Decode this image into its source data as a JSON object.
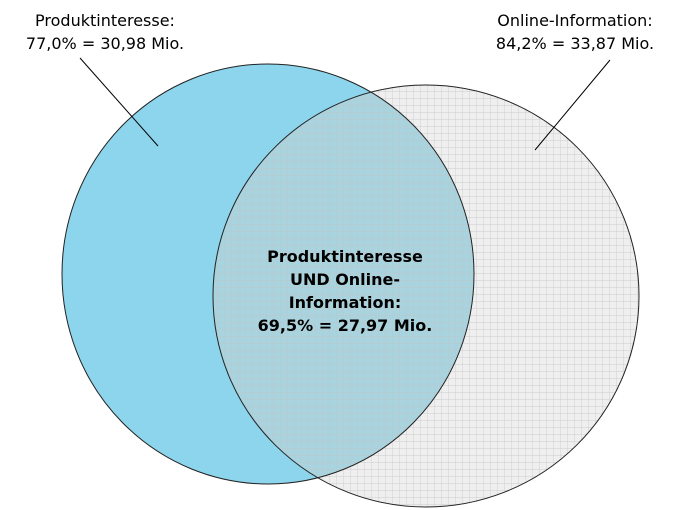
{
  "sets": [
    {
      "label": "Produktinteresse:",
      "value": "77,0% = 30,98 Mio."
    },
    {
      "label": "Online-Information:",
      "value": "84,2% = 33,87 Mio."
    }
  ],
  "intersection": {
    "lines": [
      "Produktinteresse",
      "UND Online-",
      "Information:",
      "69,5% = 27,97 Mio."
    ]
  }
}
